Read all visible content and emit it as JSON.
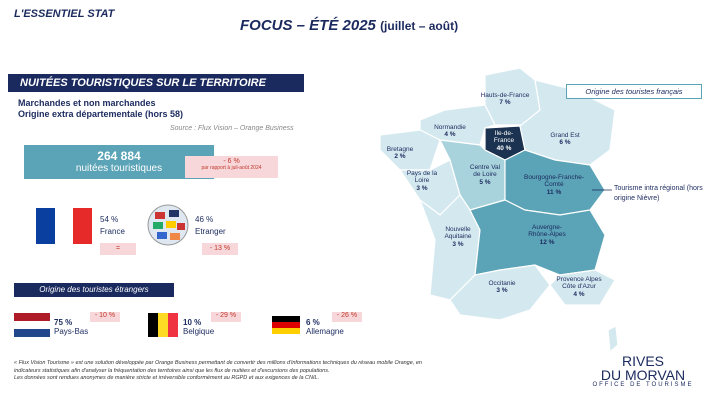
{
  "header": {
    "kicker": "L'ESSENTIEL STAT",
    "title": "FOCUS – ÉTÉ 2025",
    "title_period": "(juillet – août)"
  },
  "section": {
    "title": "NUITÉES TOURISTIQUES SUR LE TERRITOIRE",
    "subtitle_1": "Marchandes et non marchandes",
    "subtitle_2": "Origine extra départementale (hors 58)",
    "source": "Source : Flux Vision – Orange Business"
  },
  "total": {
    "value": "264 884",
    "label": "nuitées touristiques",
    "change": "- 6 %",
    "change_note": "par rapport à juil-août 2024"
  },
  "origin_split": [
    {
      "pct": "54 %",
      "label": "France",
      "change": "="
    },
    {
      "pct": "46 %",
      "label": "Etranger",
      "change": "- 13 %"
    }
  ],
  "foreign": {
    "title": "Origine des touristes étrangers",
    "countries": [
      {
        "pct": "75 %",
        "label": "Pays-Bas",
        "change": "- 10 %"
      },
      {
        "pct": "10 %",
        "label": "Belgique",
        "change": "- 29 %"
      },
      {
        "pct": "6 %",
        "label": "Allemagne",
        "change": "- 26 %"
      }
    ]
  },
  "map": {
    "title": "Origine des touristes français",
    "note": "Tourisme intra régional (hors origine Nièvre)",
    "regions": [
      {
        "name": "Hauts-de-France",
        "pct": "7 %"
      },
      {
        "name": "Normandie",
        "pct": "4 %"
      },
      {
        "name": "Ile-de-France",
        "pct": "40 %"
      },
      {
        "name": "Grand Est",
        "pct": "6 %"
      },
      {
        "name": "Bretagne",
        "pct": "2 %"
      },
      {
        "name": "Centre Val de Loire",
        "pct": "5 %"
      },
      {
        "name": "Pays de la Loire",
        "pct": "3 %"
      },
      {
        "name": "Bourgogne-Franche-Comté",
        "pct": "11 %"
      },
      {
        "name": "Nouvelle Aquitaine",
        "pct": "3 %"
      },
      {
        "name": "Auvergne-Rhône-Alpes",
        "pct": "12 %"
      },
      {
        "name": "Occitanie",
        "pct": "3 %"
      },
      {
        "name": "Provence Alpes Côte d'Azur",
        "pct": "4 %"
      }
    ]
  },
  "footnote": [
    "« Flux Vision Tourisme » est une solution développée par Orange Business permettant de convertir des millions d'informations techniques du réseau mobile Orange, en",
    "indicateurs statistiques afin d'analyser la fréquentation des territoires ainsi que les flux de nuitées et d'excursions des populations.",
    "Les données sont rendues anonymes de manière stricte et irréversible conformément au RGPD et aux exigences de la CNIL."
  ],
  "logo": {
    "line_1": "RIVES",
    "line_2": "DU MORVAN",
    "line_3": "OFFICE DE TOURISME"
  }
}
